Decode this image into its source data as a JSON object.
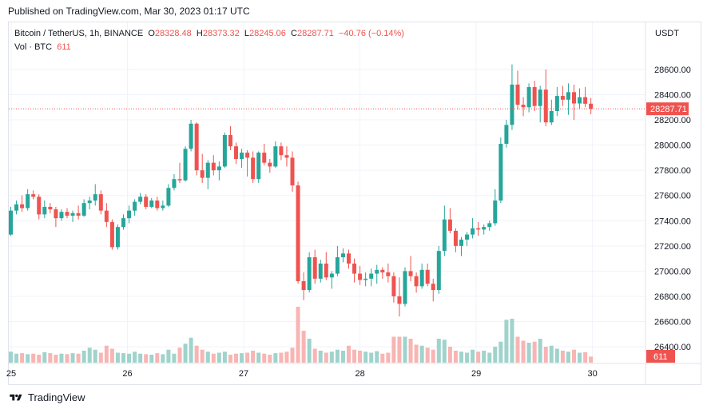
{
  "header": {
    "published": "Published on TradingView.com, Mar 30, 2023 01:17 UTC"
  },
  "legend": {
    "symbol": "Bitcoin / TetherUS, 1h, BINANCE",
    "o_label": "O",
    "o": "28328.48",
    "h_label": "H",
    "h": "28373.32",
    "l_label": "L",
    "l": "28245.06",
    "c_label": "C",
    "c": "28287.71",
    "change": "−40.76 (−0.14%)",
    "vol_label": "Vol · BTC",
    "vol": "611"
  },
  "footer": {
    "brand": "TradingView"
  },
  "colors": {
    "up": "#26a69a",
    "down": "#ef5350",
    "up_vol": "#9fd3cc",
    "down_vol": "#f7b5b3",
    "grid": "#f0f3fa",
    "text": "#131722"
  },
  "chart_data": {
    "type": "candlestick",
    "currency": "USDT",
    "y_ticks": [
      26400,
      26600,
      26800,
      27000,
      27200,
      27400,
      27600,
      27800,
      28000,
      28200,
      28400,
      28600
    ],
    "y_range": [
      26280,
      28720
    ],
    "x_ticks": [
      "25",
      "26",
      "27",
      "28",
      "29",
      "30"
    ],
    "last_price": "28287.71",
    "last_volume": "611",
    "candles": [
      [
        27290,
        27510,
        27280,
        27480
      ],
      [
        27480,
        27560,
        27450,
        27530
      ],
      [
        27530,
        27600,
        27470,
        27500
      ],
      [
        27500,
        27650,
        27480,
        27610
      ],
      [
        27610,
        27640,
        27570,
        27590
      ],
      [
        27590,
        27610,
        27410,
        27450
      ],
      [
        27450,
        27560,
        27420,
        27510
      ],
      [
        27510,
        27540,
        27460,
        27490
      ],
      [
        27490,
        27510,
        27350,
        27420
      ],
      [
        27420,
        27490,
        27400,
        27470
      ],
      [
        27470,
        27500,
        27420,
        27440
      ],
      [
        27440,
        27480,
        27390,
        27460
      ],
      [
        27460,
        27520,
        27410,
        27440
      ],
      [
        27440,
        27570,
        27430,
        27540
      ],
      [
        27540,
        27590,
        27490,
        27560
      ],
      [
        27560,
        27690,
        27520,
        27610
      ],
      [
        27610,
        27640,
        27450,
        27480
      ],
      [
        27480,
        27540,
        27350,
        27390
      ],
      [
        27390,
        27410,
        27170,
        27190
      ],
      [
        27190,
        27370,
        27170,
        27350
      ],
      [
        27350,
        27450,
        27330,
        27420
      ],
      [
        27420,
        27520,
        27380,
        27480
      ],
      [
        27480,
        27570,
        27440,
        27550
      ],
      [
        27550,
        27620,
        27530,
        27590
      ],
      [
        27590,
        27610,
        27490,
        27510
      ],
      [
        27510,
        27580,
        27500,
        27560
      ],
      [
        27560,
        27590,
        27480,
        27500
      ],
      [
        27500,
        27560,
        27480,
        27520
      ],
      [
        27520,
        27690,
        27510,
        27660
      ],
      [
        27660,
        27770,
        27640,
        27730
      ],
      [
        27730,
        27860,
        27700,
        27720
      ],
      [
        27720,
        27990,
        27710,
        27970
      ],
      [
        27970,
        28200,
        27950,
        28170
      ],
      [
        28170,
        28180,
        27760,
        27800
      ],
      [
        27800,
        27930,
        27700,
        27740
      ],
      [
        27740,
        27880,
        27650,
        27860
      ],
      [
        27860,
        27920,
        27760,
        27800
      ],
      [
        27800,
        27870,
        27720,
        27830
      ],
      [
        27830,
        28100,
        27820,
        28080
      ],
      [
        28080,
        28150,
        27960,
        27990
      ],
      [
        27990,
        28020,
        27850,
        27890
      ],
      [
        27890,
        27970,
        27820,
        27940
      ],
      [
        27940,
        27960,
        27750,
        27900
      ],
      [
        27900,
        27950,
        27700,
        27730
      ],
      [
        27730,
        27950,
        27700,
        27940
      ],
      [
        27940,
        28010,
        27840,
        27860
      ],
      [
        27860,
        27890,
        27780,
        27830
      ],
      [
        27830,
        28030,
        27820,
        27990
      ],
      [
        27990,
        28020,
        27880,
        27920
      ],
      [
        27920,
        27990,
        27830,
        27900
      ],
      [
        27900,
        27950,
        27630,
        27680
      ],
      [
        27680,
        27710,
        26900,
        26920
      ],
      [
        26920,
        26990,
        26770,
        26850
      ],
      [
        26850,
        27150,
        26830,
        27110
      ],
      [
        27110,
        27170,
        26900,
        26940
      ],
      [
        26940,
        27090,
        26910,
        27060
      ],
      [
        27060,
        27150,
        26930,
        26950
      ],
      [
        26950,
        27000,
        26860,
        26980
      ],
      [
        26980,
        27200,
        26960,
        27110
      ],
      [
        27110,
        27180,
        27070,
        27140
      ],
      [
        27140,
        27170,
        27020,
        27060
      ],
      [
        27060,
        27100,
        26910,
        26980
      ],
      [
        26980,
        27040,
        26890,
        26930
      ],
      [
        26930,
        26990,
        26880,
        26940
      ],
      [
        26940,
        27020,
        26880,
        26980
      ],
      [
        26980,
        27050,
        26900,
        27010
      ],
      [
        27010,
        27030,
        26940,
        26990
      ],
      [
        26990,
        27060,
        26910,
        26960
      ],
      [
        26960,
        26990,
        26750,
        26800
      ],
      [
        26800,
        26950,
        26640,
        26740
      ],
      [
        26740,
        27030,
        26720,
        27000
      ],
      [
        27000,
        27120,
        26920,
        26960
      ],
      [
        26960,
        26990,
        26830,
        26880
      ],
      [
        26880,
        27060,
        26860,
        27010
      ],
      [
        27010,
        27060,
        26880,
        26900
      ],
      [
        26900,
        26940,
        26760,
        26850
      ],
      [
        26850,
        27200,
        26820,
        27160
      ],
      [
        27160,
        27520,
        27120,
        27410
      ],
      [
        27410,
        27500,
        27300,
        27320
      ],
      [
        27320,
        27340,
        27150,
        27200
      ],
      [
        27200,
        27270,
        27120,
        27250
      ],
      [
        27250,
        27310,
        27200,
        27290
      ],
      [
        27290,
        27420,
        27260,
        27340
      ],
      [
        27340,
        27390,
        27280,
        27330
      ],
      [
        27330,
        27370,
        27290,
        27350
      ],
      [
        27350,
        27400,
        27320,
        27380
      ],
      [
        27380,
        27650,
        27360,
        27560
      ],
      [
        27560,
        28060,
        27540,
        28010
      ],
      [
        28010,
        28200,
        27980,
        28160
      ],
      [
        28160,
        28640,
        28120,
        28480
      ],
      [
        28480,
        28590,
        28280,
        28320
      ],
      [
        28320,
        28380,
        28230,
        28300
      ],
      [
        28300,
        28490,
        28260,
        28460
      ],
      [
        28460,
        28510,
        28270,
        28310
      ],
      [
        28310,
        28470,
        28180,
        28440
      ],
      [
        28440,
        28600,
        28150,
        28180
      ],
      [
        28180,
        28360,
        28160,
        28270
      ],
      [
        28270,
        28460,
        28230,
        28390
      ],
      [
        28390,
        28470,
        28310,
        28360
      ],
      [
        28360,
        28490,
        28240,
        28420
      ],
      [
        28420,
        28480,
        28200,
        28330
      ],
      [
        28330,
        28450,
        28290,
        28380
      ],
      [
        28380,
        28460,
        28300,
        28328
      ],
      [
        28328.48,
        28373.32,
        28245.06,
        28287.71
      ]
    ],
    "volumes": [
      1100,
      900,
      950,
      850,
      900,
      800,
      1050,
      950,
      800,
      900,
      850,
      950,
      900,
      1200,
      1500,
      1300,
      1000,
      1700,
      1400,
      1000,
      950,
      900,
      1100,
      900,
      850,
      800,
      950,
      850,
      1300,
      900,
      1500,
      1900,
      2500,
      1700,
      1300,
      1100,
      900,
      1000,
      1100,
      800,
      900,
      950,
      1000,
      1200,
      1000,
      900,
      800,
      950,
      1000,
      1100,
      1500,
      5600,
      3200,
      2400,
      1400,
      1200,
      1000,
      1100,
      1300,
      1200,
      1700,
      1300,
      1200,
      1100,
      1000,
      1150,
      900,
      1000,
      2600,
      2600,
      2600,
      2400,
      1800,
      1700,
      1500,
      1300,
      2400,
      2300,
      1600,
      1200,
      1100,
      1000,
      1300,
      1100,
      1200,
      1000,
      1600,
      2100,
      4300,
      4400,
      2600,
      2200,
      2000,
      2100,
      2400,
      1600,
      1700,
      1400,
      1200,
      1100,
      1300,
      1000,
      1050,
      611
    ]
  }
}
